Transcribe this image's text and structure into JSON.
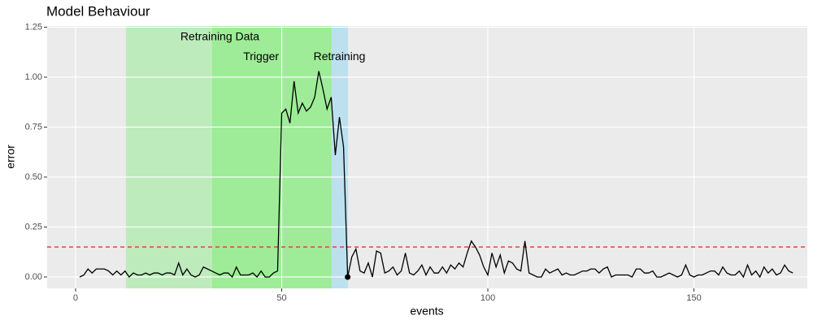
{
  "chart_data": {
    "type": "line",
    "title": "Model Behaviour",
    "xlabel": "events",
    "ylabel": "error",
    "x": [
      1,
      2,
      3,
      4,
      5,
      6,
      7,
      8,
      9,
      10,
      11,
      12,
      13,
      14,
      15,
      16,
      17,
      18,
      19,
      20,
      21,
      22,
      23,
      24,
      25,
      26,
      27,
      28,
      29,
      30,
      31,
      32,
      33,
      34,
      35,
      36,
      37,
      38,
      39,
      40,
      41,
      42,
      43,
      44,
      45,
      46,
      47,
      48,
      49,
      50,
      51,
      52,
      53,
      54,
      55,
      56,
      57,
      58,
      59,
      60,
      61,
      62,
      63,
      64,
      65,
      66,
      67,
      68,
      69,
      70,
      71,
      72,
      73,
      74,
      75,
      76,
      77,
      78,
      79,
      80,
      81,
      82,
      83,
      84,
      85,
      86,
      87,
      88,
      89,
      90,
      91,
      92,
      93,
      94,
      95,
      96,
      97,
      98,
      99,
      100,
      101,
      102,
      103,
      104,
      105,
      106,
      107,
      108,
      109,
      110,
      111,
      112,
      113,
      114,
      115,
      116,
      117,
      118,
      119,
      120,
      121,
      122,
      123,
      124,
      125,
      126,
      127,
      128,
      129,
      130,
      131,
      132,
      133,
      134,
      135,
      136,
      137,
      138,
      139,
      140,
      141,
      142,
      143,
      144,
      145,
      146,
      147,
      148,
      149,
      150,
      151,
      152,
      153,
      154,
      155,
      156,
      157,
      158,
      159,
      160,
      161,
      162,
      163,
      164,
      165,
      166,
      167,
      168,
      169,
      170,
      171,
      172,
      173,
      174
    ],
    "values": [
      0.0,
      0.01,
      0.04,
      0.02,
      0.04,
      0.04,
      0.04,
      0.03,
      0.01,
      0.03,
      0.01,
      0.03,
      0.0,
      0.02,
      0.01,
      0.01,
      0.02,
      0.01,
      0.02,
      0.02,
      0.01,
      0.02,
      0.02,
      0.01,
      0.07,
      0.01,
      0.04,
      0.01,
      0.0,
      0.01,
      0.05,
      0.04,
      0.03,
      0.02,
      0.01,
      0.02,
      0.02,
      0.0,
      0.05,
      0.01,
      0.01,
      0.01,
      0.02,
      0.0,
      0.03,
      0.0,
      0.0,
      0.02,
      0.03,
      0.82,
      0.84,
      0.77,
      0.98,
      0.82,
      0.87,
      0.83,
      0.85,
      0.9,
      1.03,
      0.94,
      0.84,
      0.9,
      0.61,
      0.8,
      0.65,
      0.0,
      0.1,
      0.14,
      0.03,
      0.02,
      0.07,
      0.0,
      0.13,
      0.12,
      0.02,
      0.03,
      0.05,
      0.01,
      0.03,
      0.12,
      0.02,
      0.01,
      0.03,
      0.06,
      0.01,
      0.05,
      0.02,
      0.02,
      0.05,
      0.02,
      0.06,
      0.04,
      0.07,
      0.05,
      0.12,
      0.18,
      0.15,
      0.11,
      0.05,
      0.01,
      0.12,
      0.05,
      0.11,
      0.02,
      0.08,
      0.07,
      0.04,
      0.03,
      0.18,
      0.02,
      0.01,
      0.0,
      0.0,
      0.04,
      0.02,
      0.03,
      0.04,
      0.01,
      0.02,
      0.01,
      0.01,
      0.02,
      0.03,
      0.03,
      0.04,
      0.04,
      0.02,
      0.04,
      0.05,
      0.0,
      0.01,
      0.01,
      0.01,
      0.01,
      0.0,
      0.04,
      0.04,
      0.02,
      0.02,
      0.03,
      0.0,
      0.0,
      0.01,
      0.02,
      0.01,
      0.0,
      0.01,
      0.06,
      0.01,
      0.0,
      0.01,
      0.01,
      0.02,
      0.03,
      0.03,
      0.01,
      0.05,
      0.02,
      0.01,
      0.01,
      0.03,
      0.0,
      0.06,
      0.01,
      0.03,
      0.0,
      0.05,
      0.02,
      0.04,
      0.01,
      0.02,
      0.06,
      0.03,
      0.02
    ],
    "color": "#000000",
    "xlim": [
      -6.9,
      177.5
    ],
    "ylim": [
      -0.057,
      1.256
    ],
    "xticks": [
      0,
      50,
      100,
      150
    ],
    "yticks": [
      {
        "value": 0,
        "label": "0.00"
      },
      {
        "value": 0.25,
        "label": "0.25"
      },
      {
        "value": 0.5,
        "label": "0.50"
      },
      {
        "value": 0.75,
        "label": "0.75"
      },
      {
        "value": 1,
        "label": "1.00"
      },
      {
        "value": 1.25,
        "label": "1.25"
      }
    ],
    "grid": true,
    "regions": [
      {
        "xmin": 12.2,
        "xmax": 33.1,
        "color": "#bdebbb"
      },
      {
        "xmin": 33.1,
        "xmax": 62.1,
        "color": "#9eec98"
      },
      {
        "xmin": 62.1,
        "xmax": 66.1,
        "color": "#bde0ee"
      }
    ],
    "annotations": [
      {
        "text": "Retraining Data",
        "x": 35,
        "y": 1.2
      },
      {
        "text": "Trigger",
        "x": 45,
        "y": 1.1
      },
      {
        "text": "Retraining",
        "x": 64,
        "y": 1.1
      }
    ],
    "threshold": {
      "value": 0.15,
      "color": "#e8342f"
    },
    "highlight": {
      "x": 66,
      "y": 0
    }
  }
}
